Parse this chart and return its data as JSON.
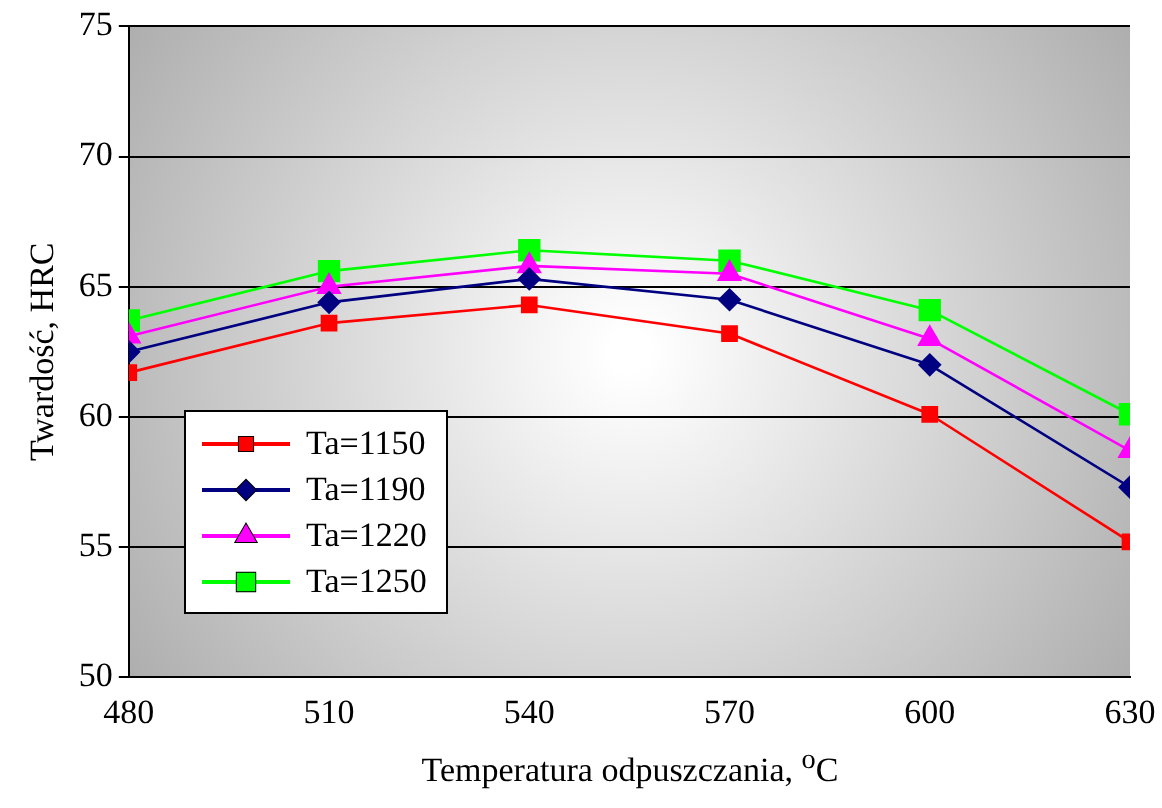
{
  "chart_data": {
    "type": "line",
    "xlabel": "Temperatura odpuszczania, $^{o}$C",
    "ylabel": "Twardość, HRC",
    "x": [
      480,
      510,
      540,
      570,
      600,
      630
    ],
    "xlim": [
      480,
      630
    ],
    "xticks": [
      480,
      510,
      540,
      570,
      600,
      630
    ],
    "ylim": [
      50,
      75
    ],
    "yticks": [
      50,
      55,
      60,
      65,
      70,
      75
    ],
    "grid": "y",
    "legend": "bottom left",
    "series": [
      {
        "name": "Ta=1150",
        "color": "#ff0000",
        "marker": "square",
        "values": [
          61.7,
          63.6,
          64.3,
          63.2,
          60.1,
          55.2
        ]
      },
      {
        "name": "Ta=1190",
        "color": "#000080",
        "marker": "diamond",
        "values": [
          62.5,
          64.4,
          65.3,
          64.5,
          62.0,
          57.3
        ]
      },
      {
        "name": "Ta=1220",
        "color": "#ff00ff",
        "marker": "triangle",
        "values": [
          63.1,
          65.0,
          65.8,
          65.5,
          63.0,
          58.7
        ]
      },
      {
        "name": "Ta=1250",
        "color": "#00ff00",
        "marker": "square",
        "values": [
          63.7,
          65.6,
          66.4,
          66.0,
          64.1,
          60.1
        ]
      }
    ]
  }
}
